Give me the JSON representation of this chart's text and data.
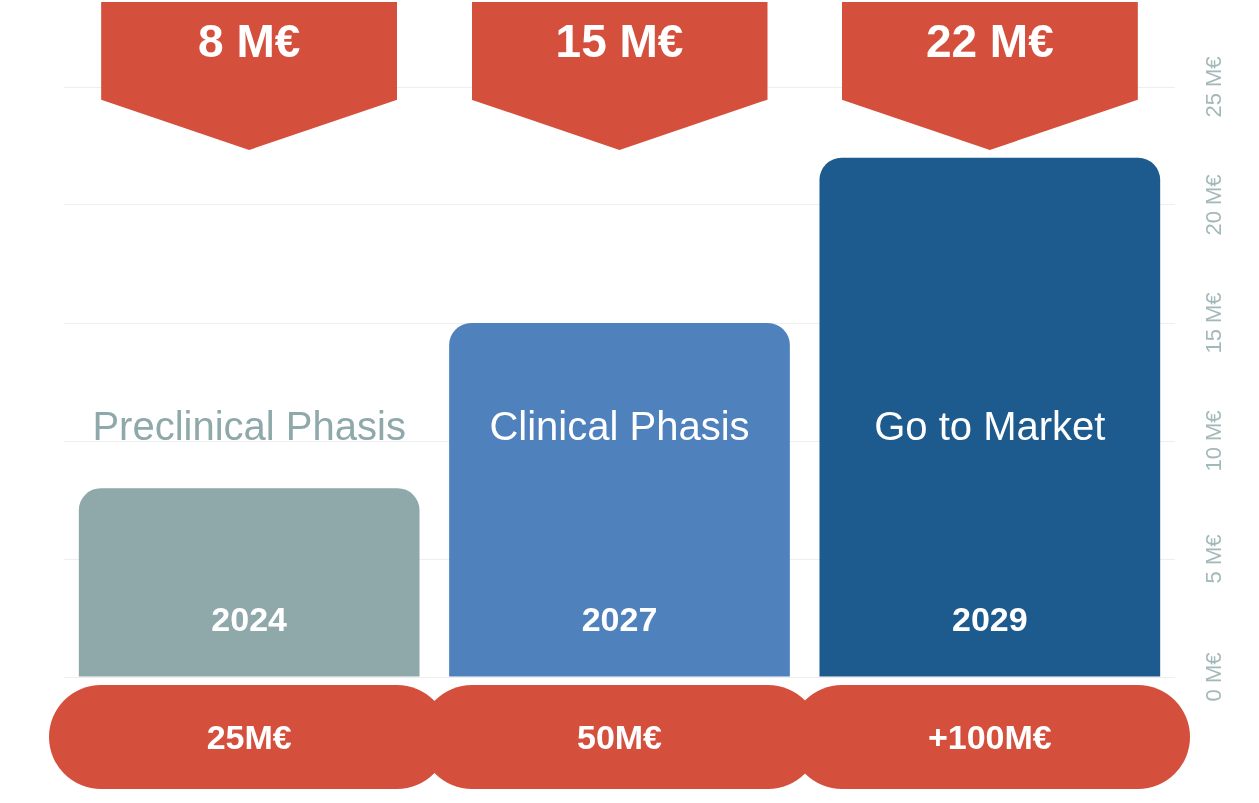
{
  "chart_data": {
    "type": "bar",
    "categories": [
      "Preclinical Phasis",
      "Clinical Phasis",
      "Go to Market"
    ],
    "values": [
      8,
      15,
      22
    ],
    "colors": [
      "#8fa9ab",
      "#4f81bd",
      "#1d5a8e"
    ],
    "ylim": [
      0,
      25
    ],
    "yticks": [
      {
        "value": 0,
        "label": "0 M€"
      },
      {
        "value": 5,
        "label": "5 M€"
      },
      {
        "value": 10,
        "label": "10 M€"
      },
      {
        "value": 15,
        "label": "15 M€"
      },
      {
        "value": 20,
        "label": "20 M€"
      },
      {
        "value": 25,
        "label": "25 M€"
      }
    ],
    "grid": "y",
    "annotations": [
      "8 M€",
      "15 M€",
      "22 M€",
      "2024",
      "2027",
      "2029",
      "25M€",
      "50M€",
      "+100M€"
    ]
  }
}
